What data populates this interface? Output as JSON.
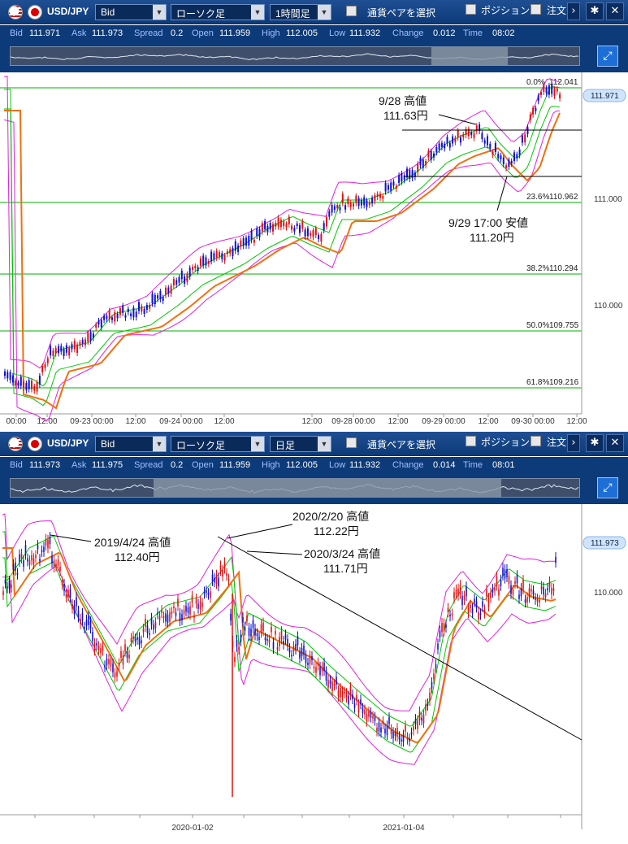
{
  "top": {
    "toolbar": {
      "pair": "USD/JPY",
      "price_type": "Bid",
      "chart_type": "ローソク足",
      "timeframe": "1時間足",
      "select_pair": "通貨ペアを選択",
      "position": "ポジション",
      "order": "注文"
    },
    "info": {
      "bid_k": "Bid",
      "bid": "111.971",
      "ask_k": "Ask",
      "ask": "111.973",
      "spread_k": "Spread",
      "spread": "0.2",
      "open_k": "Open",
      "open": "111.959",
      "high_k": "High",
      "high": "112.005",
      "low_k": "Low",
      "low": "111.932",
      "change_k": "Change",
      "change": "0.012",
      "time_k": "Time",
      "time": "08:02"
    },
    "price_label": "111.971",
    "y_ticks": [
      "111.000",
      "110.000"
    ],
    "fib": [
      {
        "label": "0.0%",
        "value": "112.041"
      },
      {
        "label": "23.6%",
        "value": "110.962"
      },
      {
        "label": "38.2%",
        "value": "110.294"
      },
      {
        "label": "50.0%",
        "value": "109.755"
      },
      {
        "label": "61.8%",
        "value": "109.216"
      }
    ],
    "x_ticks": [
      "00:00",
      "12:00",
      "09-23 00:00",
      "12:00",
      "09-24 00:00",
      "12:00",
      "12:00",
      "09-28 00:00",
      "12:00",
      "09-29 00:00",
      "12:00",
      "09-30 00:00",
      "12:00"
    ],
    "ann_high": {
      "line1": "9/28 高値",
      "line2": "111.63円"
    },
    "ann_low": {
      "line1": "9/29 17:00 安値",
      "line2": "111.20円"
    }
  },
  "bottom": {
    "toolbar": {
      "pair": "USD/JPY",
      "price_type": "Bid",
      "chart_type": "ローソク足",
      "timeframe": "日足",
      "select_pair": "通貨ペアを選択",
      "position": "ポジション",
      "order": "注文"
    },
    "info": {
      "bid_k": "Bid",
      "bid": "111.973",
      "ask_k": "Ask",
      "ask": "111.975",
      "spread_k": "Spread",
      "spread": "0.2",
      "open_k": "Open",
      "open": "111.959",
      "high_k": "High",
      "high": "112.005",
      "low_k": "Low",
      "low": "111.932",
      "change_k": "Change",
      "change": "0.014",
      "time_k": "Time",
      "time": "08:01"
    },
    "price_label": "111.973",
    "y_ticks": [
      "110.000"
    ],
    "x_ticks": [
      "2020-01-02",
      "2021-01-04"
    ],
    "ann1": {
      "line1": "2019/4/24 高値",
      "line2": "112.40円"
    },
    "ann2": {
      "line1": "2020/2/20 高値",
      "line2": "112.22円"
    },
    "ann3": {
      "line1": "2020/3/24 高値",
      "line2": "111.71円"
    }
  },
  "colors": {
    "toolbar": "#0d3a78",
    "bollinger": "#e020e0",
    "mid": "#00c800",
    "ma": "#f07010",
    "up": "#1010d0",
    "down": "#e01010",
    "grid": "#00b000"
  }
}
